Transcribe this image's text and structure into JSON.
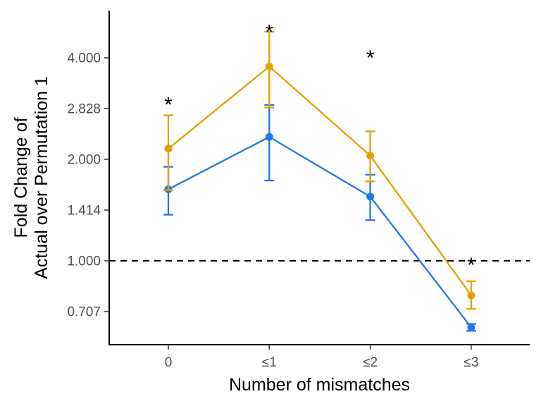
{
  "chart_data": {
    "type": "line",
    "title": "",
    "xlabel": "Number of mismatches",
    "ylabel_lines": [
      "Fold Change of",
      "Actual over Permutation 1"
    ],
    "y_scale": "log2",
    "ylim": [
      0.6,
      5.3
    ],
    "categories": [
      "0",
      "≤1",
      "≤2",
      "≤3"
    ],
    "y_ticks": [
      {
        "value": 0.707,
        "label": "0.707"
      },
      {
        "value": 1.0,
        "label": "1.000"
      },
      {
        "value": 1.414,
        "label": "1.414"
      },
      {
        "value": 2.0,
        "label": "2.000"
      },
      {
        "value": 2.828,
        "label": "2.828"
      },
      {
        "value": 4.0,
        "label": "4.000"
      }
    ],
    "reference_line": {
      "value": 1.0,
      "style": "dashed"
    },
    "series": [
      {
        "color": "#E69F00",
        "values": [
          2.15,
          3.77,
          2.05,
          0.79
        ],
        "error_low": [
          1.62,
          2.85,
          1.72,
          0.72
        ],
        "error_high": [
          2.7,
          4.78,
          2.42,
          0.87
        ]
      },
      {
        "color": "#1F78E8",
        "values": [
          1.63,
          2.33,
          1.55,
          0.635
        ],
        "error_low": [
          1.37,
          1.73,
          1.32,
          0.62
        ],
        "error_high": [
          1.9,
          2.9,
          1.8,
          0.65
        ]
      }
    ],
    "significance_marks": [
      {
        "category": "0",
        "label": "*",
        "value": 3.05
      },
      {
        "category": "≤1",
        "label": "*",
        "value": 5.0
      },
      {
        "category": "≤2",
        "label": "*",
        "value": 4.2
      },
      {
        "category": "≤3",
        "label": "*",
        "value": 1.02
      }
    ],
    "grid": false,
    "legend": "none"
  }
}
